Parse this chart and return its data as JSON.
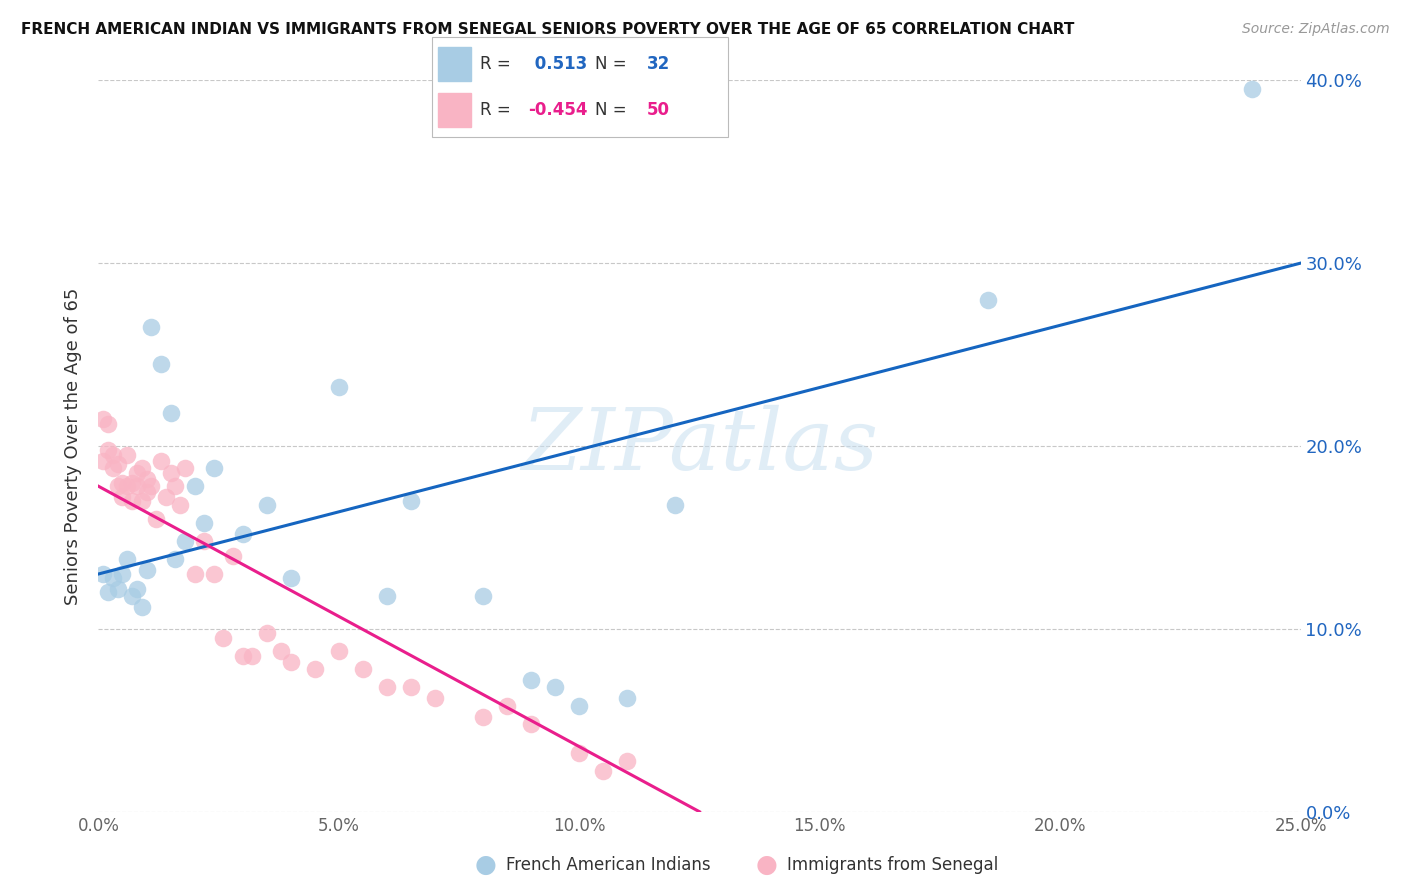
{
  "title": "FRENCH AMERICAN INDIAN VS IMMIGRANTS FROM SENEGAL SENIORS POVERTY OVER THE AGE OF 65 CORRELATION CHART",
  "source": "Source: ZipAtlas.com",
  "ylabel": "Seniors Poverty Over the Age of 65",
  "watermark": "ZIPatlas",
  "legend1_label": "French American Indians",
  "legend2_label": "Immigrants from Senegal",
  "r1": "0.513",
  "n1": "32",
  "r2": "-0.454",
  "n2": "50",
  "xlim": [
    0.0,
    0.25
  ],
  "ylim": [
    0.0,
    0.4
  ],
  "ytick_vals": [
    0.0,
    0.1,
    0.2,
    0.3,
    0.4
  ],
  "xtick_vals": [
    0.0,
    0.05,
    0.1,
    0.15,
    0.2,
    0.25
  ],
  "color_blue": "#a8cce4",
  "color_pink": "#f9b4c4",
  "line_blue": "#1565c0",
  "line_pink": "#e91e8c",
  "blue_x": [
    0.001,
    0.002,
    0.003,
    0.004,
    0.005,
    0.006,
    0.007,
    0.008,
    0.009,
    0.01,
    0.011,
    0.013,
    0.015,
    0.016,
    0.018,
    0.02,
    0.022,
    0.024,
    0.03,
    0.035,
    0.04,
    0.05,
    0.06,
    0.065,
    0.08,
    0.09,
    0.095,
    0.1,
    0.11,
    0.12,
    0.185,
    0.24
  ],
  "blue_y": [
    0.13,
    0.12,
    0.128,
    0.122,
    0.13,
    0.138,
    0.118,
    0.122,
    0.112,
    0.132,
    0.265,
    0.245,
    0.218,
    0.138,
    0.148,
    0.178,
    0.158,
    0.188,
    0.152,
    0.168,
    0.128,
    0.232,
    0.118,
    0.17,
    0.118,
    0.072,
    0.068,
    0.058,
    0.062,
    0.168,
    0.28,
    0.395
  ],
  "pink_x": [
    0.001,
    0.001,
    0.002,
    0.002,
    0.003,
    0.003,
    0.004,
    0.004,
    0.005,
    0.005,
    0.006,
    0.006,
    0.007,
    0.007,
    0.008,
    0.008,
    0.009,
    0.009,
    0.01,
    0.01,
    0.011,
    0.012,
    0.013,
    0.014,
    0.015,
    0.016,
    0.017,
    0.018,
    0.02,
    0.022,
    0.024,
    0.026,
    0.028,
    0.03,
    0.032,
    0.035,
    0.038,
    0.04,
    0.045,
    0.05,
    0.055,
    0.06,
    0.065,
    0.07,
    0.08,
    0.085,
    0.09,
    0.1,
    0.105,
    0.11
  ],
  "pink_y": [
    0.192,
    0.215,
    0.198,
    0.212,
    0.195,
    0.188,
    0.19,
    0.178,
    0.18,
    0.172,
    0.195,
    0.178,
    0.18,
    0.17,
    0.185,
    0.178,
    0.17,
    0.188,
    0.175,
    0.182,
    0.178,
    0.16,
    0.192,
    0.172,
    0.185,
    0.178,
    0.168,
    0.188,
    0.13,
    0.148,
    0.13,
    0.095,
    0.14,
    0.085,
    0.085,
    0.098,
    0.088,
    0.082,
    0.078,
    0.088,
    0.078,
    0.068,
    0.068,
    0.062,
    0.052,
    0.058,
    0.048,
    0.032,
    0.022,
    0.028
  ],
  "blue_line_x0": 0.0,
  "blue_line_x1": 0.25,
  "blue_line_y0": 0.13,
  "blue_line_y1": 0.3,
  "pink_line_x0": 0.0,
  "pink_line_x1": 0.125,
  "pink_line_y0": 0.178,
  "pink_line_y1": 0.0
}
